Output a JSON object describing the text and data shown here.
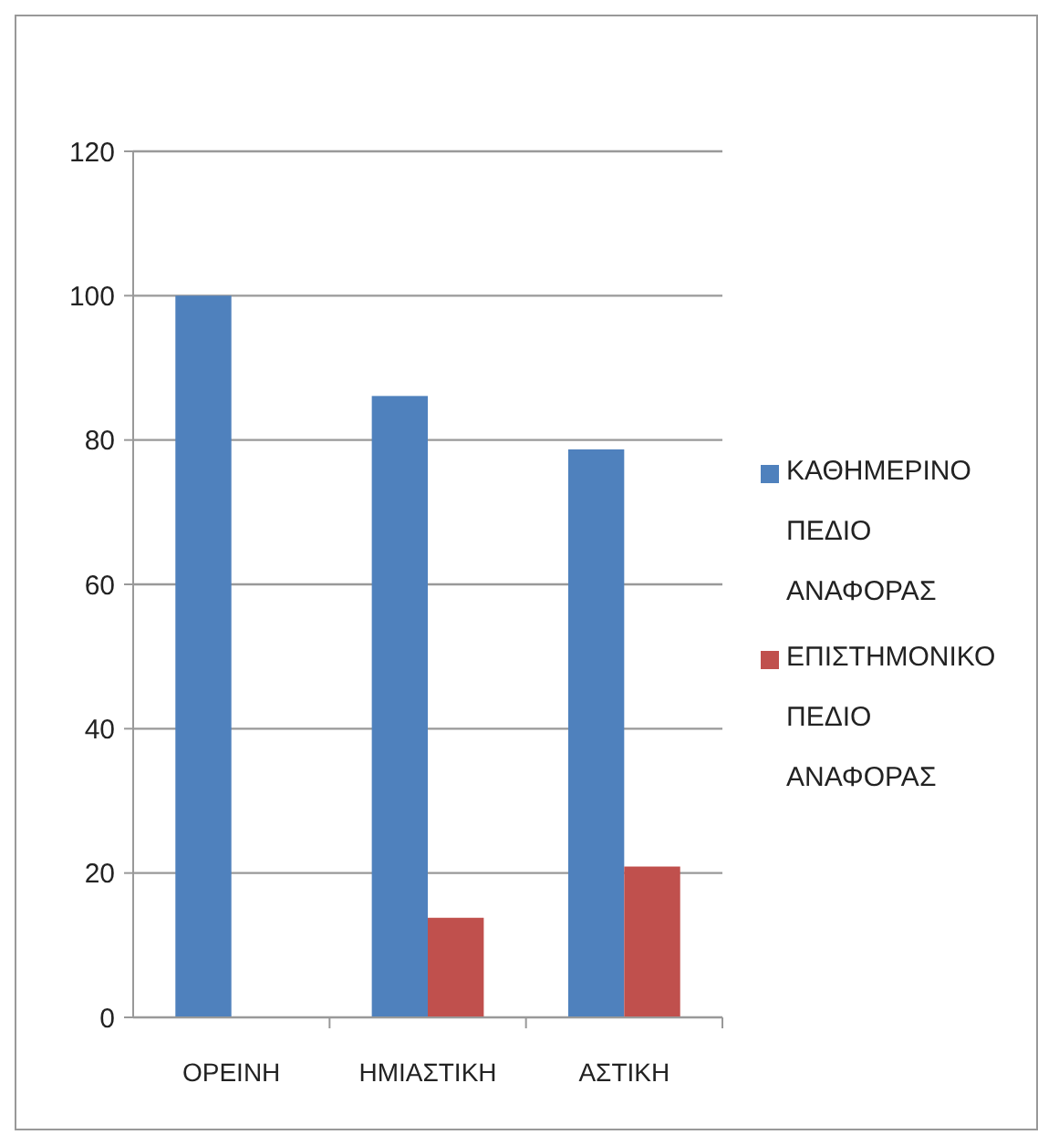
{
  "chart_data": {
    "type": "bar",
    "categories": [
      "ΟΡΕΙΝΗ",
      "ΗΜΙΑΣΤΙΚΗ",
      "ΑΣΤΙΚΗ"
    ],
    "series": [
      {
        "name": "ΚΑΘΗΜΕΡΙΝΟ ΠΕΔΙΟ ΑΝΑΦΟΡΑΣ",
        "color": "#4f81bd",
        "values": [
          100,
          86.1,
          78.7
        ]
      },
      {
        "name": "ΕΠΙΣΤΗΜΟΝΙΚΟ ΠΕΔΙΟ ΑΝΑΦΟΡΑΣ",
        "color": "#c0504d",
        "values": [
          null,
          13.8,
          20.9
        ]
      }
    ],
    "ylim": [
      0,
      120
    ],
    "yticks": [
      0,
      20,
      40,
      60,
      80,
      100,
      120
    ],
    "grid": "y",
    "legend": "right"
  }
}
